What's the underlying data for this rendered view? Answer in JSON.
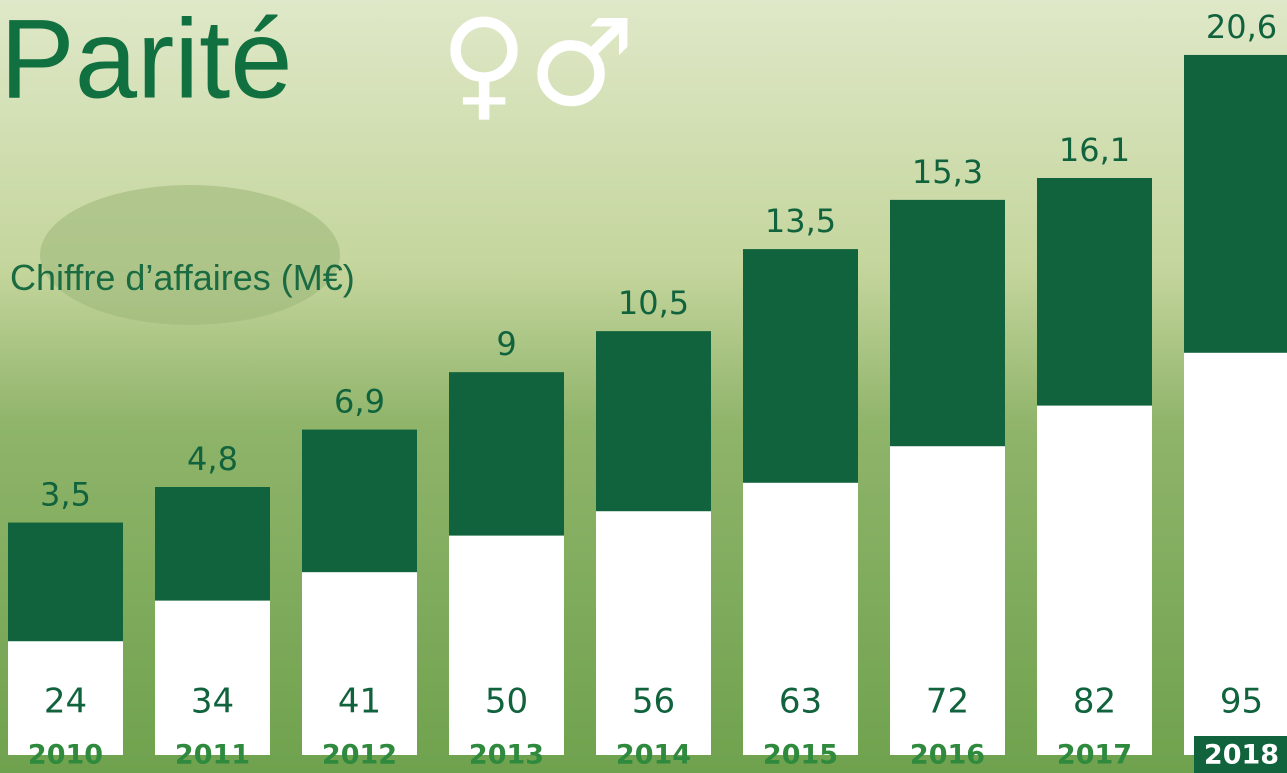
{
  "chart_data": {
    "type": "bar",
    "title": "Parité",
    "title_symbols": "♀♂",
    "ylabel": "Chiffre d’affaires (M€)",
    "categories": [
      "2010",
      "2011",
      "2012",
      "2013",
      "2014",
      "2015",
      "2016",
      "2017",
      "2018"
    ],
    "series": [
      {
        "color": "#11633d",
        "values": [
          3.5,
          4.8,
          6.9,
          9,
          10.5,
          13.5,
          15.3,
          16.1,
          20.6
        ],
        "value_labels": [
          "3,5",
          "4,8",
          "6,9",
          "9",
          "10,5",
          "13,5",
          "15,3",
          "16,1",
          "20,6"
        ]
      },
      {
        "color": "#ffffff",
        "axis": "y2",
        "values": [
          24,
          34,
          41,
          50,
          56,
          63,
          72,
          82,
          95
        ]
      }
    ],
    "ylim": [
      -5,
      21
    ],
    "y2lim": [
      -4,
      171
    ]
  }
}
